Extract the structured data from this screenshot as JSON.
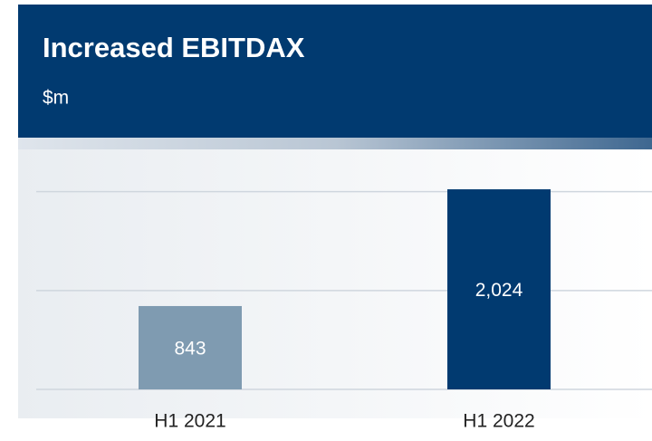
{
  "chart_data": {
    "type": "bar",
    "title": "Increased EBITDAX",
    "subtitle": "$m",
    "categories": [
      "H1 2021",
      "H1 2022"
    ],
    "values": [
      843,
      2024
    ],
    "value_labels": [
      "843",
      "2,024"
    ],
    "colors": [
      "#7f9bb1",
      "#013a70"
    ],
    "ylim": [
      0,
      2400
    ],
    "yticks": [
      0,
      1000,
      2000
    ],
    "grid": true
  }
}
